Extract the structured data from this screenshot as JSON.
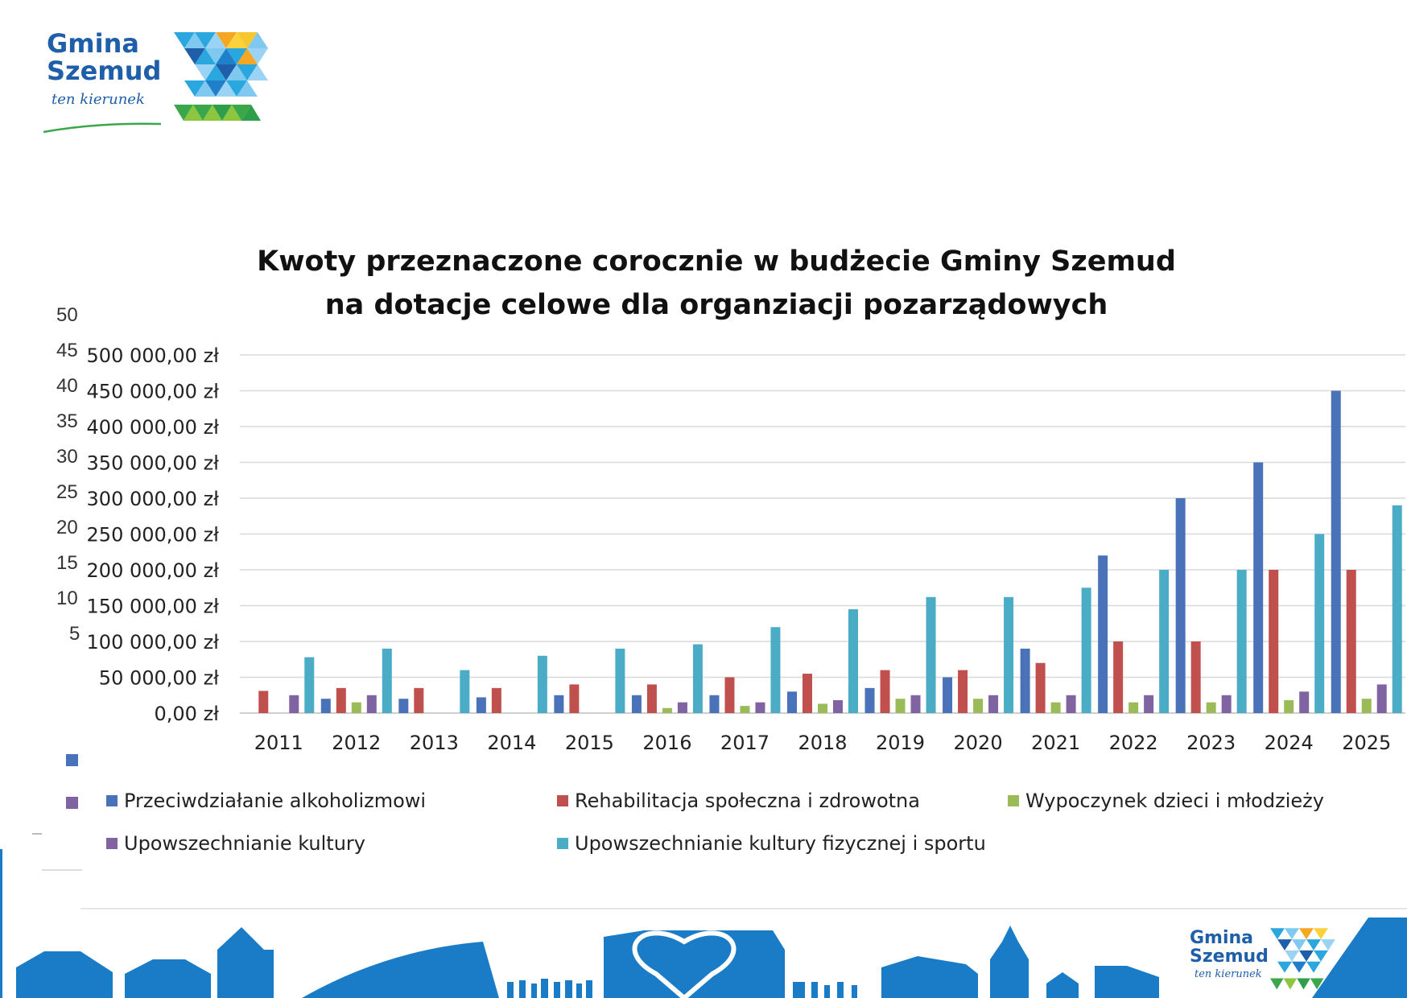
{
  "logo": {
    "line1": "Gmina",
    "line2": "Szemud",
    "tagline": "ten kierunek"
  },
  "title": {
    "line1": "Kwoty przeznaczone corocznie w budżecie Gminy Szemud",
    "line2": "na dotacje celowe dla organziacji pozarządowych"
  },
  "ghost_axis_labels": [
    "50",
    "45",
    "40",
    "35",
    "30",
    "25",
    "20",
    "15",
    "10",
    "5"
  ],
  "colors": {
    "series1": "#4a72b8",
    "series2": "#c0504d",
    "series3": "#9bbb59",
    "series4": "#8064a2",
    "series5": "#4bacc6",
    "grid": "#d9d9d9",
    "brand": "#1f5faa",
    "skyline": "#1a7bc6"
  },
  "chart_data": {
    "type": "bar",
    "categories": [
      "2011",
      "2012",
      "2013",
      "2014",
      "2015",
      "2016",
      "2017",
      "2018",
      "2019",
      "2020",
      "2021",
      "2022",
      "2023",
      "2024",
      "2025"
    ],
    "ylim": [
      0,
      500000
    ],
    "yticks": [
      "0,00 zł",
      "50 000,00 zł",
      "100 000,00 zł",
      "150 000,00 zł",
      "200 000,00 zł",
      "250 000,00 zł",
      "300 000,00 zł",
      "350 000,00 zł",
      "400 000,00 zł",
      "450 000,00 zł",
      "500 000,00 zł"
    ],
    "grid": true,
    "legend_position": "bottom",
    "series": [
      {
        "name": "Przeciwdziałanie alkoholizmowi",
        "values": [
          0,
          20000,
          20000,
          22000,
          25000,
          25000,
          25000,
          30000,
          35000,
          50000,
          90000,
          220000,
          300000,
          350000,
          450000
        ]
      },
      {
        "name": "Rehabilitacja społeczna  i zdrowotna",
        "values": [
          31000,
          35000,
          35000,
          35000,
          40000,
          40000,
          50000,
          55000,
          60000,
          60000,
          70000,
          100000,
          100000,
          200000,
          200000
        ]
      },
      {
        "name": "Wypoczynek dzieci i młodzieży",
        "values": [
          0,
          15000,
          0,
          0,
          0,
          7000,
          10000,
          13000,
          20000,
          20000,
          15000,
          15000,
          15000,
          18000,
          20000
        ]
      },
      {
        "name": "Upowszechnianie kultury",
        "values": [
          25000,
          25000,
          0,
          0,
          0,
          15000,
          15000,
          18000,
          25000,
          25000,
          25000,
          25000,
          25000,
          30000,
          40000
        ]
      },
      {
        "name": "Upowszechnianie kultury fizycznej  i sportu",
        "values": [
          78000,
          90000,
          60000,
          80000,
          90000,
          96000,
          120000,
          145000,
          162000,
          162000,
          175000,
          200000,
          200000,
          250000,
          290000
        ]
      }
    ]
  }
}
